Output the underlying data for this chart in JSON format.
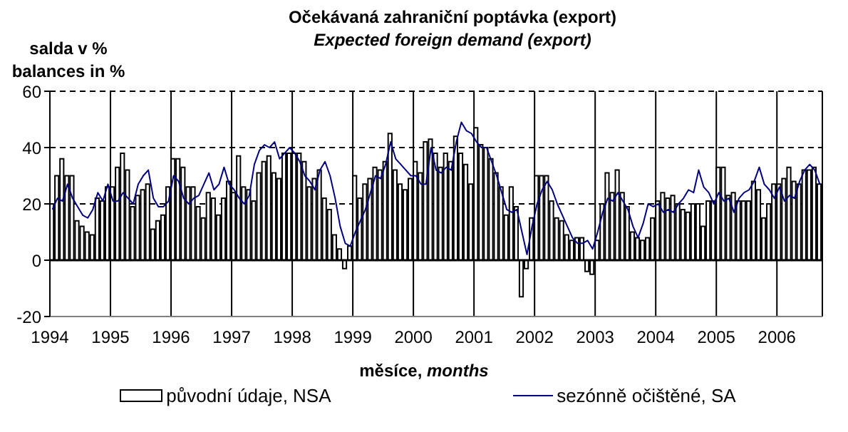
{
  "chart_data": {
    "type": "bar",
    "title": "Očekávaná zahraniční poptávka (export)",
    "subtitle": "Expected foreign demand (export)",
    "xlabel": "měsíce, months",
    "ylabel": "salda v %\nbalances in %",
    "x": [
      "1994-01",
      "1994-02",
      "1994-03",
      "1994-04",
      "1994-05",
      "1994-06",
      "1994-07",
      "1994-08",
      "1994-09",
      "1994-10",
      "1994-11",
      "1994-12",
      "1995-01",
      "1995-02",
      "1995-03",
      "1995-04",
      "1995-05",
      "1995-06",
      "1995-07",
      "1995-08",
      "1995-09",
      "1995-10",
      "1995-11",
      "1995-12",
      "1996-01",
      "1996-02",
      "1996-03",
      "1996-04",
      "1996-05",
      "1996-06",
      "1996-07",
      "1996-08",
      "1996-09",
      "1996-10",
      "1996-11",
      "1996-12",
      "1997-01",
      "1997-02",
      "1997-03",
      "1997-04",
      "1997-05",
      "1997-06",
      "1997-07",
      "1997-08",
      "1997-09",
      "1997-10",
      "1997-11",
      "1997-12",
      "1998-01",
      "1998-02",
      "1998-03",
      "1998-04",
      "1998-05",
      "1998-06",
      "1998-07",
      "1998-08",
      "1998-09",
      "1998-10",
      "1998-11",
      "1998-12",
      "1999-01",
      "1999-02",
      "1999-03",
      "1999-04",
      "1999-05",
      "1999-06",
      "1999-07",
      "1999-08",
      "1999-09",
      "1999-10",
      "1999-11",
      "1999-12",
      "2000-01",
      "2000-02",
      "2000-03",
      "2000-04",
      "2000-05",
      "2000-06",
      "2000-07",
      "2000-08",
      "2000-09",
      "2000-10",
      "2000-11",
      "2000-12",
      "2001-01",
      "2001-02",
      "2001-03",
      "2001-04",
      "2001-05",
      "2001-06",
      "2001-07",
      "2001-08",
      "2001-09",
      "2001-10",
      "2001-11",
      "2001-12",
      "2002-01",
      "2002-02",
      "2002-03",
      "2002-04",
      "2002-05",
      "2002-06",
      "2002-07",
      "2002-08",
      "2002-09",
      "2002-10",
      "2002-11",
      "2002-12",
      "2003-01",
      "2003-02",
      "2003-03",
      "2003-04",
      "2003-05",
      "2003-06",
      "2003-07",
      "2003-08",
      "2003-09",
      "2003-10",
      "2003-11",
      "2003-12",
      "2004-01",
      "2004-02",
      "2004-03",
      "2004-04",
      "2004-05",
      "2004-06",
      "2004-07",
      "2004-08",
      "2004-09",
      "2004-10",
      "2004-11",
      "2004-12",
      "2005-01",
      "2005-02",
      "2005-03",
      "2005-04",
      "2005-05",
      "2005-06",
      "2005-07",
      "2005-08",
      "2005-09",
      "2005-10",
      "2005-11",
      "2005-12",
      "2006-01",
      "2006-02",
      "2006-03",
      "2006-04",
      "2006-05",
      "2006-06",
      "2006-07",
      "2006-08",
      "2006-09"
    ],
    "series": [
      {
        "name": "původní údaje, NSA",
        "color": "#ffffff",
        "values": [
          20,
          30,
          36,
          30,
          30,
          14,
          12,
          10,
          9,
          22,
          21,
          26,
          26,
          33,
          38,
          32,
          19,
          23,
          25,
          27,
          11,
          14,
          16,
          26,
          36,
          36,
          33,
          26,
          26,
          19,
          15,
          24,
          22,
          16,
          22,
          28,
          24,
          37,
          26,
          25,
          21,
          31,
          35,
          37,
          31,
          29,
          38,
          38,
          38,
          38,
          35,
          26,
          29,
          32,
          22,
          18,
          9,
          4,
          -3,
          5,
          30,
          22,
          27,
          29,
          33,
          32,
          35,
          45,
          32,
          27,
          25,
          29,
          35,
          31,
          42,
          43,
          38,
          33,
          38,
          35,
          44,
          38,
          34,
          27,
          47,
          41,
          40,
          36,
          31,
          26,
          16,
          26,
          19,
          -13,
          -3,
          15,
          30,
          30,
          30,
          21,
          15,
          14,
          9,
          7,
          8,
          8,
          -4,
          -5,
          7,
          20,
          31,
          24,
          32,
          24,
          19,
          10,
          8,
          7,
          8,
          15,
          21,
          24,
          22,
          23,
          20,
          18,
          17,
          20,
          20,
          12,
          21,
          21,
          33,
          33,
          23,
          24,
          21,
          21,
          21,
          28,
          25,
          15,
          20,
          27,
          27,
          29,
          33,
          28,
          27,
          32,
          32,
          33,
          27
        ]
      },
      {
        "name": "sezónně očištěné, SA",
        "type": "line",
        "color": "#000080",
        "values": [
          18,
          22,
          21,
          27,
          22,
          19,
          16,
          15,
          18,
          24,
          21,
          27,
          21,
          21,
          24,
          22,
          20,
          27,
          30,
          32,
          22,
          19,
          19,
          21,
          30,
          28,
          22,
          20,
          22,
          23,
          27,
          31,
          25,
          27,
          33,
          27,
          25,
          22,
          20,
          23,
          34,
          39,
          41,
          40,
          42,
          36,
          38,
          40,
          38,
          35,
          30,
          28,
          25,
          32,
          35,
          30,
          22,
          12,
          6,
          5,
          10,
          14,
          18,
          24,
          30,
          29,
          34,
          42,
          36,
          34,
          32,
          30,
          30,
          27,
          27,
          40,
          32,
          31,
          33,
          32,
          42,
          49,
          46,
          45,
          42,
          40,
          40,
          35,
          30,
          24,
          18,
          17,
          18,
          10,
          2,
          12,
          20,
          25,
          28,
          25,
          20,
          16,
          12,
          8,
          6,
          6,
          7,
          4,
          10,
          17,
          22,
          21,
          24,
          21,
          18,
          12,
          8,
          13,
          20,
          19,
          20,
          17,
          18,
          17,
          20,
          22,
          25,
          24,
          32,
          26,
          24,
          20,
          24,
          21,
          22,
          17,
          22,
          24,
          25,
          28,
          33,
          27,
          25,
          22,
          26,
          21,
          23,
          22,
          28,
          32,
          34,
          32,
          27
        ]
      }
    ],
    "xlim": [
      "1994-01",
      "2006-10"
    ],
    "xticks": [
      {
        "value": "1994-01",
        "label": "1994"
      },
      {
        "value": "1995-01",
        "label": "1995"
      },
      {
        "value": "1996-01",
        "label": "1996"
      },
      {
        "value": "1997-01",
        "label": "1997"
      },
      {
        "value": "1998-01",
        "label": "1998"
      },
      {
        "value": "1999-01",
        "label": "1999"
      },
      {
        "value": "2000-01",
        "label": "2000"
      },
      {
        "value": "2001-01",
        "label": "2001"
      },
      {
        "value": "2002-01",
        "label": "2002"
      },
      {
        "value": "2003-01",
        "label": "2003"
      },
      {
        "value": "2004-01",
        "label": "2004"
      },
      {
        "value": "2005-01",
        "label": "2005"
      },
      {
        "value": "2006-01",
        "label": "2006"
      }
    ],
    "ylim": [
      -20,
      60
    ],
    "yticks": [
      -20,
      0,
      20,
      40,
      60
    ],
    "ref_lines": [
      {
        "axis": "y",
        "value": 0,
        "color": "#000000"
      }
    ],
    "grid": true,
    "legend": "bottom"
  }
}
